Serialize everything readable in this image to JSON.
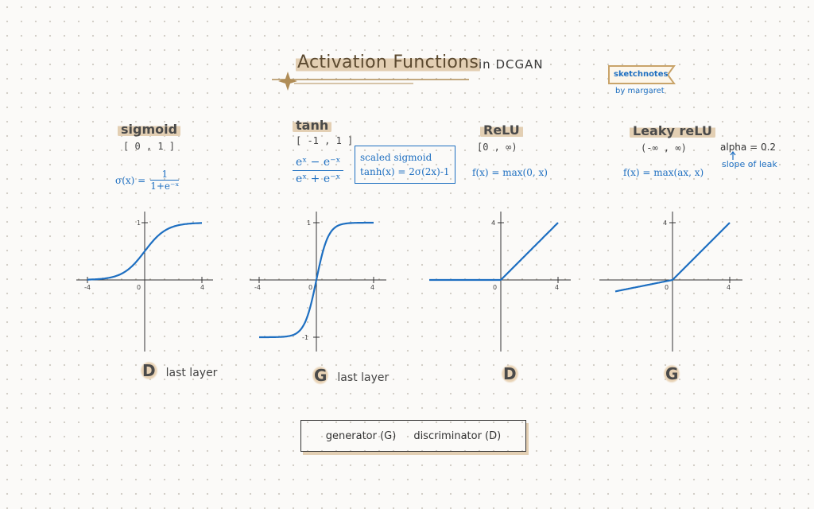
{
  "header": {
    "title": "Activation Functions",
    "subtitle": "in DCGAN",
    "badge": "sketchnotes",
    "byline": "by margaret"
  },
  "functions": [
    {
      "name": "sigmoid",
      "range": "[ 0 , 1 ]",
      "formula_prefix": "σ(x) =",
      "formula_num": "1",
      "formula_den": "1+e⁻ˣ",
      "ticks": {
        "xneg": "-4",
        "zero": "0",
        "xpos": "4",
        "ypos": "1"
      },
      "network_letter": "D",
      "network_note": "last layer"
    },
    {
      "name": "tanh",
      "range": "[ -1 , 1 ]",
      "formula_num": "eˣ − e⁻ˣ",
      "formula_den": "eˣ + e⁻ˣ",
      "box_line1": "scaled sigmoid",
      "box_line2": "tanh(x) = 2σ(2x)-1",
      "ticks": {
        "xneg": "-4",
        "zero": "0",
        "xpos": "4",
        "ypos": "1",
        "yneg": "-1"
      },
      "network_letter": "G",
      "network_note": "last layer"
    },
    {
      "name": "ReLU",
      "range": "[0 , ∞)",
      "formula": "f(x) = max(0, x)",
      "ticks": {
        "zero": "0",
        "xpos": "4",
        "ypos": "4"
      },
      "network_letter": "D"
    },
    {
      "name": "Leaky reLU",
      "range": "(-∞ , ∞)",
      "formula": "f(x) = max(ax, x)",
      "alpha": "alpha = 0.2",
      "alpha_note": "slope of leak",
      "ticks": {
        "zero": "0",
        "xpos": "4",
        "ypos": "4"
      },
      "network_letter": "G"
    }
  ],
  "legend": {
    "generator": "generator (G)",
    "discriminator": "discriminator (D)"
  },
  "colors": {
    "curve": "#1e6fc1",
    "highlight": "#e3cfb3",
    "title": "#5c4a30"
  }
}
